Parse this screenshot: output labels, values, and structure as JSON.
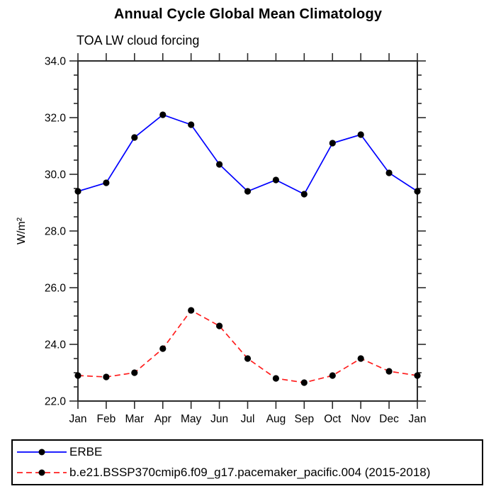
{
  "chart_data": {
    "type": "line",
    "title": "Annual Cycle Global Mean Climatology",
    "subtitle": "TOA LW cloud forcing",
    "xlabel": "",
    "ylabel": "W/m²",
    "categories": [
      "Jan",
      "Feb",
      "Mar",
      "Apr",
      "May",
      "Jun",
      "Jul",
      "Aug",
      "Sep",
      "Oct",
      "Nov",
      "Dec",
      "Jan"
    ],
    "ylim": [
      22.0,
      34.0
    ],
    "ytick_step": 2.0,
    "yminor_step": 0.5,
    "ytick_decimals": 1,
    "grid": false,
    "legend_position": "bottom",
    "axis_color": "#2b2b2b",
    "marker": "filled-circle",
    "marker_color": "#000000",
    "series": [
      {
        "name": "ERBE",
        "color": "#0000ff",
        "line_style": "solid",
        "values": [
          29.4,
          29.7,
          31.3,
          32.1,
          31.75,
          30.35,
          29.4,
          29.8,
          29.3,
          31.1,
          31.4,
          30.05,
          29.4
        ]
      },
      {
        "name": "b.e21.BSSP370cmip6.f09_g17.pacemaker_pacific.004 (2015-2018)",
        "color": "#ff1e1e",
        "line_style": "dashed",
        "values": [
          22.9,
          22.85,
          23.0,
          23.85,
          25.2,
          24.65,
          23.5,
          22.8,
          22.65,
          22.9,
          23.5,
          23.05,
          22.9
        ]
      }
    ]
  }
}
